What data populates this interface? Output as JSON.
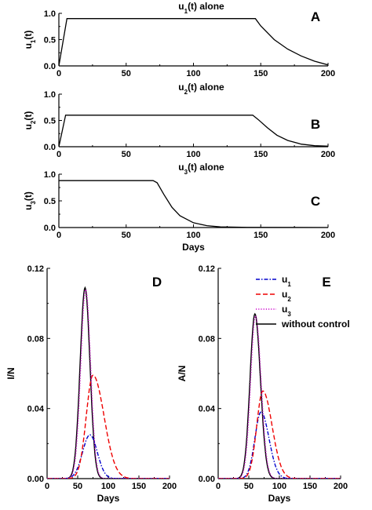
{
  "chart_data": [
    {
      "panel": "A",
      "type": "line",
      "title_main": "u",
      "title_sub": "1",
      "title_rest": "(t) alone",
      "ylabel_main": "u",
      "ylabel_sub": "1",
      "ylabel_rest": "(t)",
      "xlabel": "",
      "xlim": [
        0,
        200
      ],
      "ylim": [
        0,
        1.0
      ],
      "xticks": [
        "0",
        "50",
        "100",
        "150",
        "200"
      ],
      "yticks": [
        "0.0",
        "0.5",
        "1.0"
      ],
      "series": [
        {
          "color": "#000000",
          "style": "solid",
          "x": [
            0,
            6,
            8,
            50,
            100,
            146,
            150,
            160,
            170,
            180,
            190,
            200
          ],
          "y": [
            0,
            0.9,
            0.9,
            0.9,
            0.9,
            0.9,
            0.76,
            0.5,
            0.32,
            0.19,
            0.09,
            0.02
          ]
        }
      ]
    },
    {
      "panel": "B",
      "type": "line",
      "title_main": "u",
      "title_sub": "2",
      "title_rest": "(t) alone",
      "ylabel_main": "u",
      "ylabel_sub": "2",
      "ylabel_rest": "(t)",
      "xlabel": "",
      "xlim": [
        0,
        200
      ],
      "ylim": [
        0,
        1.0
      ],
      "xticks": [
        "0",
        "50",
        "100",
        "150",
        "200"
      ],
      "yticks": [
        "0.0",
        "0.5",
        "1.0"
      ],
      "series": [
        {
          "color": "#000000",
          "style": "solid",
          "x": [
            0,
            5,
            7,
            50,
            100,
            144,
            148,
            155,
            162,
            170,
            180,
            190,
            200
          ],
          "y": [
            0,
            0.6,
            0.6,
            0.6,
            0.6,
            0.6,
            0.52,
            0.36,
            0.22,
            0.12,
            0.05,
            0.02,
            0.01
          ]
        }
      ]
    },
    {
      "panel": "C",
      "type": "line",
      "title_main": "u",
      "title_sub": "3",
      "title_rest": "(t) alone",
      "ylabel_main": "u",
      "ylabel_sub": "3",
      "ylabel_rest": "(t)",
      "xlabel": "Days",
      "xlim": [
        0,
        200
      ],
      "ylim": [
        0,
        1.0
      ],
      "xticks": [
        "0",
        "50",
        "100",
        "150",
        "200"
      ],
      "yticks": [
        "0.0",
        "0.5",
        "1.0"
      ],
      "series": [
        {
          "color": "#000000",
          "style": "solid",
          "x": [
            0,
            20,
            50,
            70,
            73,
            78,
            84,
            90,
            100,
            110,
            120,
            140,
            200
          ],
          "y": [
            0.88,
            0.88,
            0.88,
            0.88,
            0.84,
            0.62,
            0.38,
            0.22,
            0.09,
            0.035,
            0.012,
            0.003,
            0
          ]
        }
      ]
    },
    {
      "panel": "D",
      "type": "line",
      "title_main": "",
      "title_sub": "",
      "title_rest": "",
      "ylabel_main": "I/N",
      "ylabel_sub": "",
      "ylabel_rest": "",
      "xlabel": "Days",
      "xlim": [
        0,
        200
      ],
      "ylim": [
        0,
        0.12
      ],
      "xticks": [
        "0",
        "50",
        "100",
        "150",
        "200"
      ],
      "yticks": [
        "0.00",
        "0.04",
        "0.08",
        "0.12"
      ],
      "series": [
        {
          "color": "#000000",
          "style": "solid",
          "peak_x": 62,
          "peak_y": 0.109,
          "width_l": 8,
          "width_r": 8,
          "tail": 0
        },
        {
          "color": "#0000cc",
          "style": "dashdot",
          "peak_x": 70,
          "peak_y": 0.025,
          "width_l": 12,
          "width_r": 12,
          "tail": 0
        },
        {
          "color": "#ee0000",
          "style": "dashed",
          "peak_x": 75,
          "peak_y": 0.059,
          "width_l": 11,
          "width_r": 18,
          "tail": 0
        },
        {
          "color": "#cc00cc",
          "style": "dotted",
          "peak_x": 63,
          "peak_y": 0.108,
          "width_l": 8,
          "width_r": 8,
          "tail": 0
        }
      ]
    },
    {
      "panel": "E",
      "type": "line",
      "title_main": "",
      "title_sub": "",
      "title_rest": "",
      "ylabel_main": "A/N",
      "ylabel_sub": "",
      "ylabel_rest": "",
      "xlabel": "Days",
      "xlim": [
        0,
        200
      ],
      "ylim": [
        0,
        0.12
      ],
      "xticks": [
        "0",
        "50",
        "100",
        "150",
        "200"
      ],
      "yticks": [
        "0.00",
        "0.04",
        "0.08",
        "0.12"
      ],
      "series": [
        {
          "color": "#000000",
          "style": "solid",
          "peak_x": 60,
          "peak_y": 0.094,
          "width_l": 8,
          "width_r": 9,
          "tail": 0
        },
        {
          "color": "#0000cc",
          "style": "dashdot",
          "peak_x": 70,
          "peak_y": 0.038,
          "width_l": 10,
          "width_r": 13,
          "tail": 0
        },
        {
          "color": "#ee0000",
          "style": "dashed",
          "peak_x": 73,
          "peak_y": 0.05,
          "width_l": 10,
          "width_r": 15,
          "tail": 0
        },
        {
          "color": "#cc00cc",
          "style": "dotted",
          "peak_x": 61,
          "peak_y": 0.093,
          "width_l": 8,
          "width_r": 9,
          "tail": 0
        }
      ],
      "legend": [
        {
          "main": "u",
          "sub": "1",
          "color": "#0000cc",
          "style": "dashdot"
        },
        {
          "main": "u",
          "sub": "2",
          "color": "#ee0000",
          "style": "dashed"
        },
        {
          "main": "u",
          "sub": "3",
          "color": "#cc00cc",
          "style": "dotted"
        },
        {
          "main": "without control",
          "sub": "",
          "color": "#000000",
          "style": "solid"
        }
      ]
    }
  ]
}
